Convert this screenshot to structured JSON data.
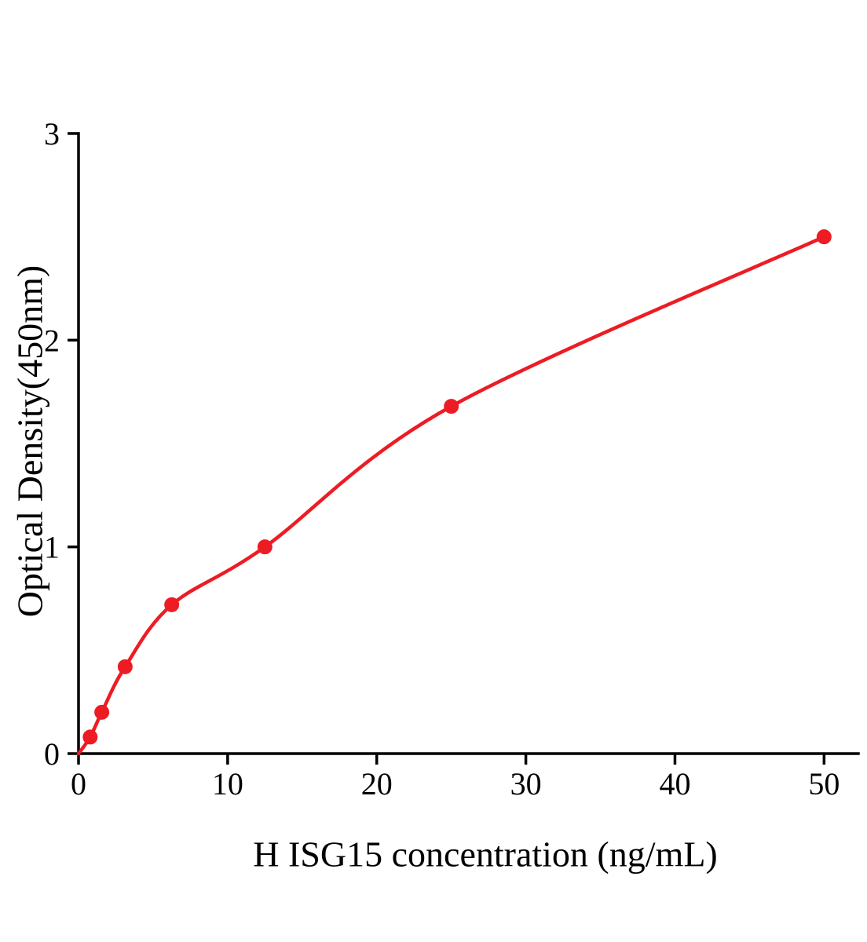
{
  "chart_data": {
    "type": "scatter",
    "title": "",
    "xlabel": "H ISG15 concentration (ng/mL)",
    "ylabel": "Optical Density(450nm)",
    "x": [
      0.78,
      1.56,
      3.125,
      6.25,
      12.5,
      25,
      50
    ],
    "y": [
      0.08,
      0.2,
      0.42,
      0.72,
      1.0,
      1.68,
      2.5
    ],
    "fit_curve": {
      "style": "smooth-through-points",
      "start": [
        0,
        0
      ]
    },
    "xlim": [
      0,
      52.3
    ],
    "ylim": [
      0,
      3
    ],
    "x_ticks": [
      0,
      10,
      20,
      30,
      40,
      50
    ],
    "y_ticks": [
      0,
      1,
      2,
      3
    ],
    "grid": false,
    "legend": "none",
    "point_color": "#ed1c24",
    "line_color": "#ed1c24",
    "axis_color": "#000000"
  }
}
